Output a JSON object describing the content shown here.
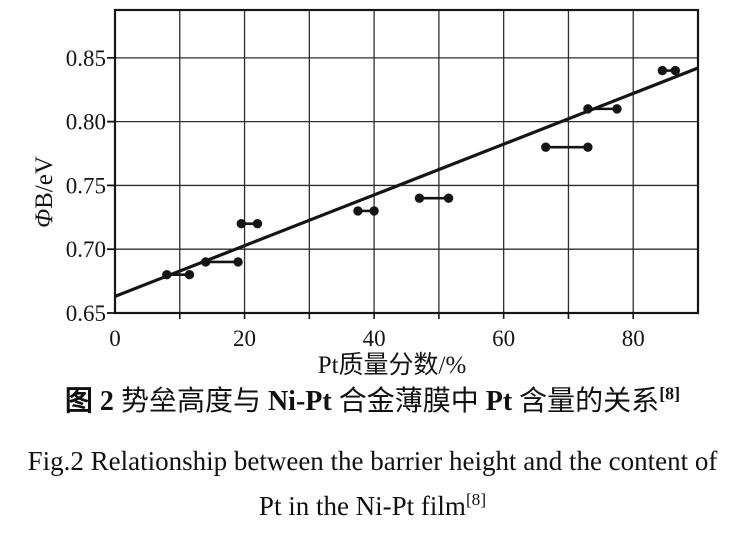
{
  "chart_data": {
    "type": "scatter",
    "title": "",
    "xlabel": "Pt质量分数/%",
    "ylabel": "ΦB/eV",
    "ylabel_parts": [
      {
        "text": "Φ",
        "italic": true
      },
      {
        "text": "B/eV",
        "italic": false
      }
    ],
    "xlim": [
      0,
      90
    ],
    "ylim": [
      0.65,
      0.8875
    ],
    "x_grid_step": 10,
    "grid": true,
    "x_ticks": [
      0,
      20,
      40,
      60,
      80
    ],
    "x_tick_labels": [
      "0",
      "20",
      "40",
      "60",
      "80"
    ],
    "y_ticks": [
      0.65,
      0.7,
      0.75,
      0.8,
      0.85
    ],
    "y_tick_labels": [
      "0.65",
      "0.70",
      "0.75",
      "0.80",
      "0.85"
    ],
    "point_pairs": [
      {
        "x1": 8,
        "x2": 11.5,
        "y": 0.68
      },
      {
        "x1": 14,
        "x2": 19,
        "y": 0.69
      },
      {
        "x1": 19.5,
        "x2": 22,
        "y": 0.72
      },
      {
        "x1": 37.5,
        "x2": 40,
        "y": 0.73
      },
      {
        "x1": 47,
        "x2": 51.5,
        "y": 0.74
      },
      {
        "x1": 66.5,
        "x2": 73,
        "y": 0.78
      },
      {
        "x1": 73,
        "x2": 77.5,
        "y": 0.81
      },
      {
        "x1": 84.5,
        "x2": 86.5,
        "y": 0.84
      }
    ],
    "trend_line": {
      "x1": 0,
      "y1": 0.663,
      "x2": 90,
      "y2": 0.842
    },
    "colors": {
      "ink": "#151515",
      "grid": "#2e2e2e",
      "background": "#ffffff"
    }
  },
  "captions": {
    "zh_segments": [
      {
        "text": "图 2",
        "bold": true
      },
      {
        "text": " 势垒高度与 ",
        "bold": false
      },
      {
        "text": "Ni-Pt",
        "bold": true
      },
      {
        "text": " 合金薄膜中 ",
        "bold": false
      },
      {
        "text": "Pt",
        "bold": true
      },
      {
        "text": " 含量的关系",
        "bold": false
      },
      {
        "text": "[8]",
        "bold": true,
        "sup": true
      }
    ],
    "en_line1": "Fig.2 Relationship between the barrier height and the content of",
    "en_line2_segments": [
      {
        "text": "Pt in the Ni-Pt film",
        "bold": false
      },
      {
        "text": "[8]",
        "bold": false,
        "sup": true
      }
    ]
  }
}
